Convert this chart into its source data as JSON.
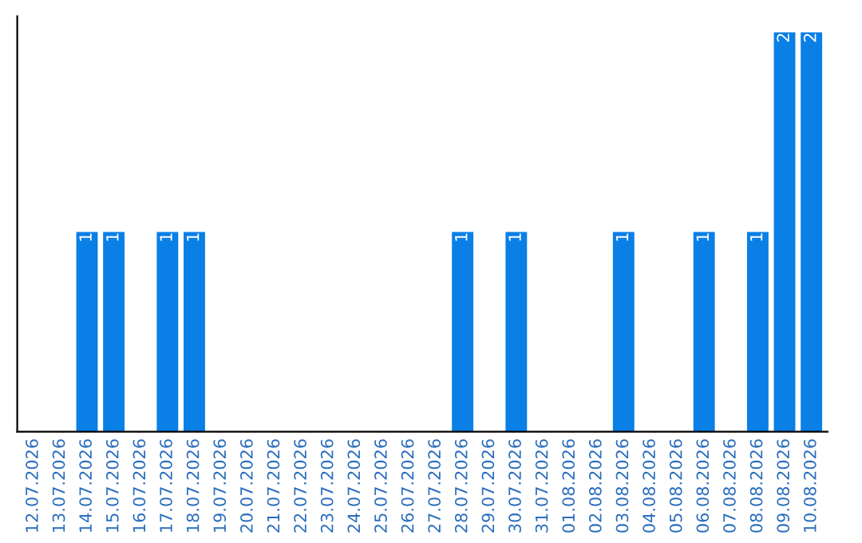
{
  "chart_data": {
    "type": "bar",
    "categories": [
      "12.07.2026",
      "13.07.2026",
      "14.07.2026",
      "15.07.2026",
      "16.07.2026",
      "17.07.2026",
      "18.07.2026",
      "19.07.2026",
      "20.07.2026",
      "21.07.2026",
      "22.07.2026",
      "23.07.2026",
      "24.07.2026",
      "25.07.2026",
      "26.07.2026",
      "27.07.2026",
      "28.07.2026",
      "29.07.2026",
      "30.07.2026",
      "31.07.2026",
      "01.08.2026",
      "02.08.2026",
      "03.08.2026",
      "04.08.2026",
      "05.08.2026",
      "06.08.2026",
      "07.08.2026",
      "08.08.2026",
      "09.08.2026",
      "10.08.2026"
    ],
    "values": [
      0,
      0,
      1,
      1,
      0,
      1,
      1,
      0,
      0,
      0,
      0,
      0,
      0,
      0,
      0,
      0,
      1,
      0,
      1,
      0,
      0,
      0,
      1,
      0,
      0,
      1,
      0,
      1,
      2,
      2
    ],
    "value_labels": [
      null,
      null,
      "1",
      "1",
      null,
      "1",
      "1",
      null,
      null,
      null,
      null,
      null,
      null,
      null,
      null,
      null,
      "1",
      null,
      "1",
      null,
      null,
      null,
      "1",
      null,
      null,
      "1",
      null,
      "1",
      "2",
      "2"
    ],
    "color": "#0a7fe6",
    "tick_labels": "x",
    "grid": false,
    "legend": false
  }
}
